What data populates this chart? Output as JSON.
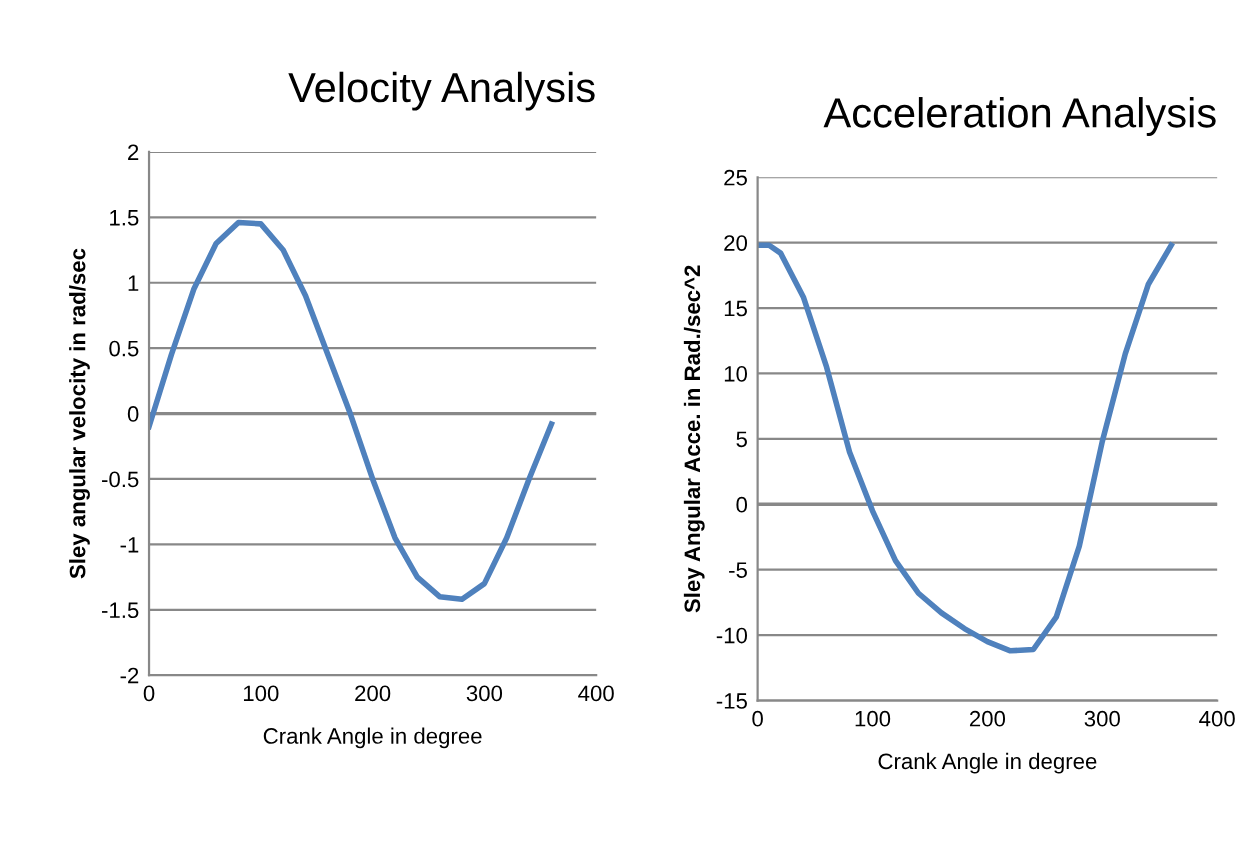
{
  "chart_data": [
    {
      "type": "line",
      "title": "Velocity Analysis",
      "xlabel": "Crank Angle in degree",
      "ylabel": "Sley angular velocity in rad/sec",
      "x": [
        0,
        20,
        40,
        60,
        80,
        100,
        120,
        140,
        160,
        180,
        200,
        220,
        240,
        260,
        280,
        300,
        320,
        340,
        360
      ],
      "series": [
        {
          "color": "#4f81bd",
          "values": [
            -0.1,
            0.45,
            0.95,
            1.3,
            1.46,
            1.45,
            1.25,
            0.9,
            0.45,
            0.0,
            -0.5,
            -0.95,
            -1.25,
            -1.4,
            -1.42,
            -1.3,
            -0.95,
            -0.5,
            -0.08
          ]
        }
      ],
      "xlim": [
        0,
        400
      ],
      "xticks": [
        0,
        100,
        200,
        300,
        400
      ],
      "ylim": [
        -2,
        2
      ],
      "yticks": [
        -2,
        -1.5,
        -1,
        -0.5,
        0,
        0.5,
        1,
        1.5,
        2
      ],
      "grid": "y",
      "marker": "none"
    },
    {
      "type": "line",
      "title": "Acceleration Analysis",
      "xlabel": "Crank Angle in degree",
      "ylabel": "Sley Angular Acce. in Rad./sec^2",
      "x": [
        0,
        10,
        20,
        40,
        60,
        80,
        100,
        120,
        140,
        160,
        180,
        200,
        220,
        240,
        260,
        280,
        300,
        320,
        340,
        360
      ],
      "series": [
        {
          "color": "#4f81bd",
          "values": [
            19.8,
            19.8,
            19.2,
            15.8,
            10.5,
            4.0,
            -0.5,
            -4.3,
            -6.8,
            -8.3,
            -9.5,
            -10.5,
            -11.2,
            -11.1,
            -8.6,
            -3.2,
            4.8,
            11.5,
            16.8,
            19.8
          ]
        }
      ],
      "xlim": [
        0,
        400
      ],
      "xticks": [
        0,
        100,
        200,
        300,
        400
      ],
      "ylim": [
        -15,
        25
      ],
      "yticks": [
        -15,
        -10,
        -5,
        0,
        5,
        10,
        15,
        20,
        25
      ],
      "grid": "y",
      "marker": "none"
    }
  ]
}
